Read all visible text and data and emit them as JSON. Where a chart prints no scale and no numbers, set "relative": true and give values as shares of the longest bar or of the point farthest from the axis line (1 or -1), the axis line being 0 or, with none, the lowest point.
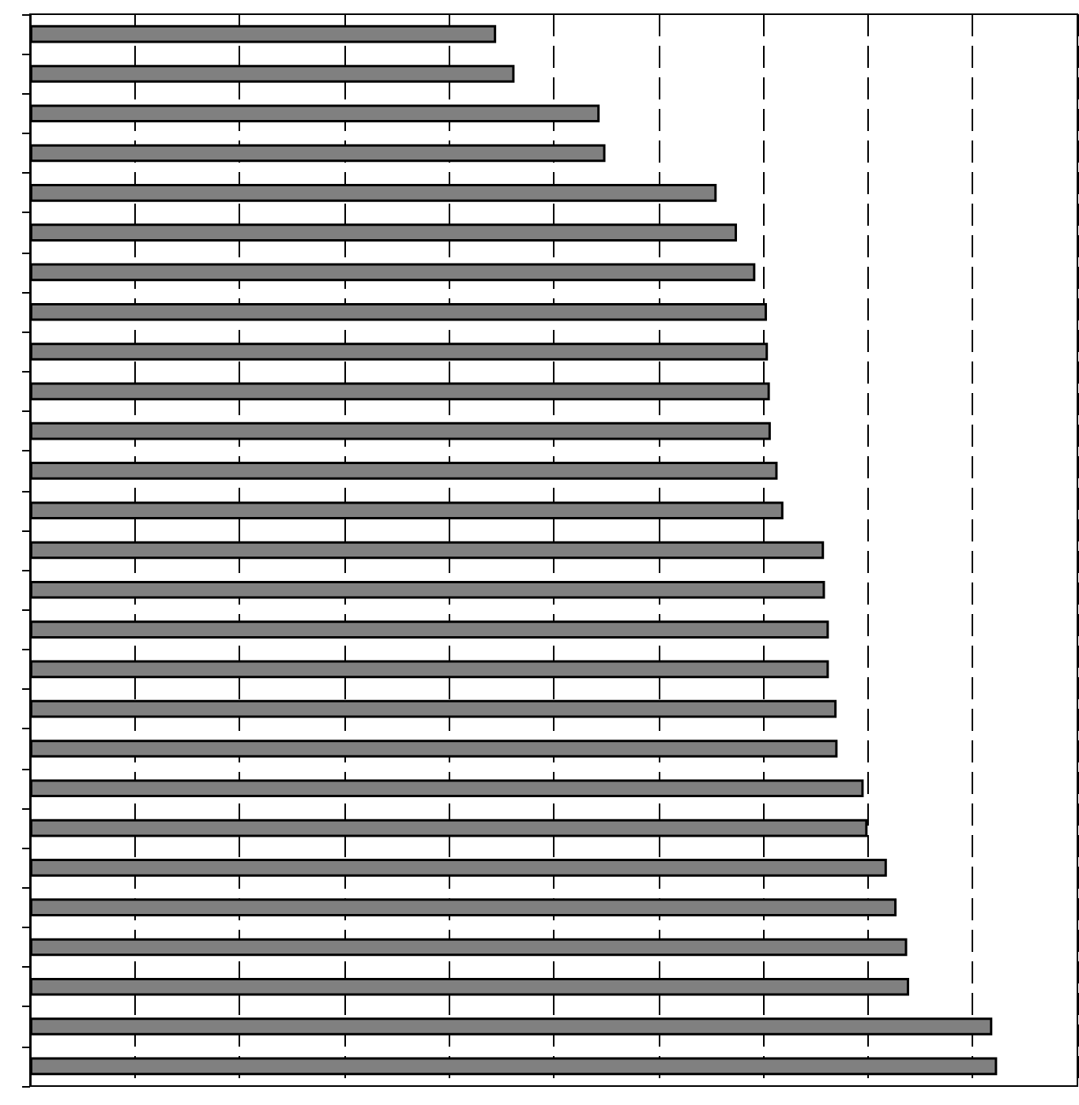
{
  "chart_data": {
    "type": "bar",
    "orientation": "horizontal",
    "relative": true,
    "grid": "x",
    "color": "#808080",
    "categories": [
      null,
      null,
      null,
      null,
      null,
      null,
      null,
      null,
      null,
      null,
      null,
      null,
      null,
      null,
      null,
      null,
      null,
      null,
      null,
      null,
      null,
      null,
      null,
      null,
      null,
      null,
      null
    ],
    "values": [
      0.482,
      0.501,
      0.589,
      0.595,
      0.71,
      0.731,
      0.75,
      0.762,
      0.763,
      0.765,
      0.766,
      0.773,
      0.779,
      0.821,
      0.822,
      0.826,
      0.826,
      0.834,
      0.835,
      0.862,
      0.866,
      0.886,
      0.896,
      0.907,
      0.909,
      0.995,
      1
    ]
  }
}
